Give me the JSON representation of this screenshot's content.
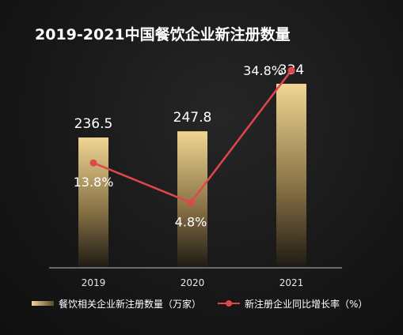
{
  "chart_data": {
    "type": "bar",
    "title": "2019-2021中国餐饮企业新注册数量",
    "categories": [
      "2019",
      "2020",
      "2021"
    ],
    "series": [
      {
        "name": "餐饮相关企业新注册数量（万家）",
        "type": "bar",
        "values": [
          236.5,
          247.8,
          334
        ],
        "labels": [
          "236.5",
          "247.8",
          "334"
        ]
      },
      {
        "name": "新注册企业同比增长率（%）",
        "type": "line",
        "values": [
          13.8,
          4.8,
          34.8
        ],
        "labels": [
          "13.8%",
          "4.8%",
          "34.8%"
        ]
      }
    ],
    "bar_ylim": [
      0,
      400
    ],
    "line_ylim": [
      -10,
      40
    ],
    "legend_position": "bottom",
    "grid": false
  },
  "colors": {
    "title": "#ffffff",
    "label": "#ffffff",
    "tick": "#e8e8e8",
    "bar_top": "#f0d592",
    "bar_bottom": "#1e1a13",
    "line": "#e0474c",
    "marker": "#e0474c",
    "axis": "#bdbdbd"
  }
}
